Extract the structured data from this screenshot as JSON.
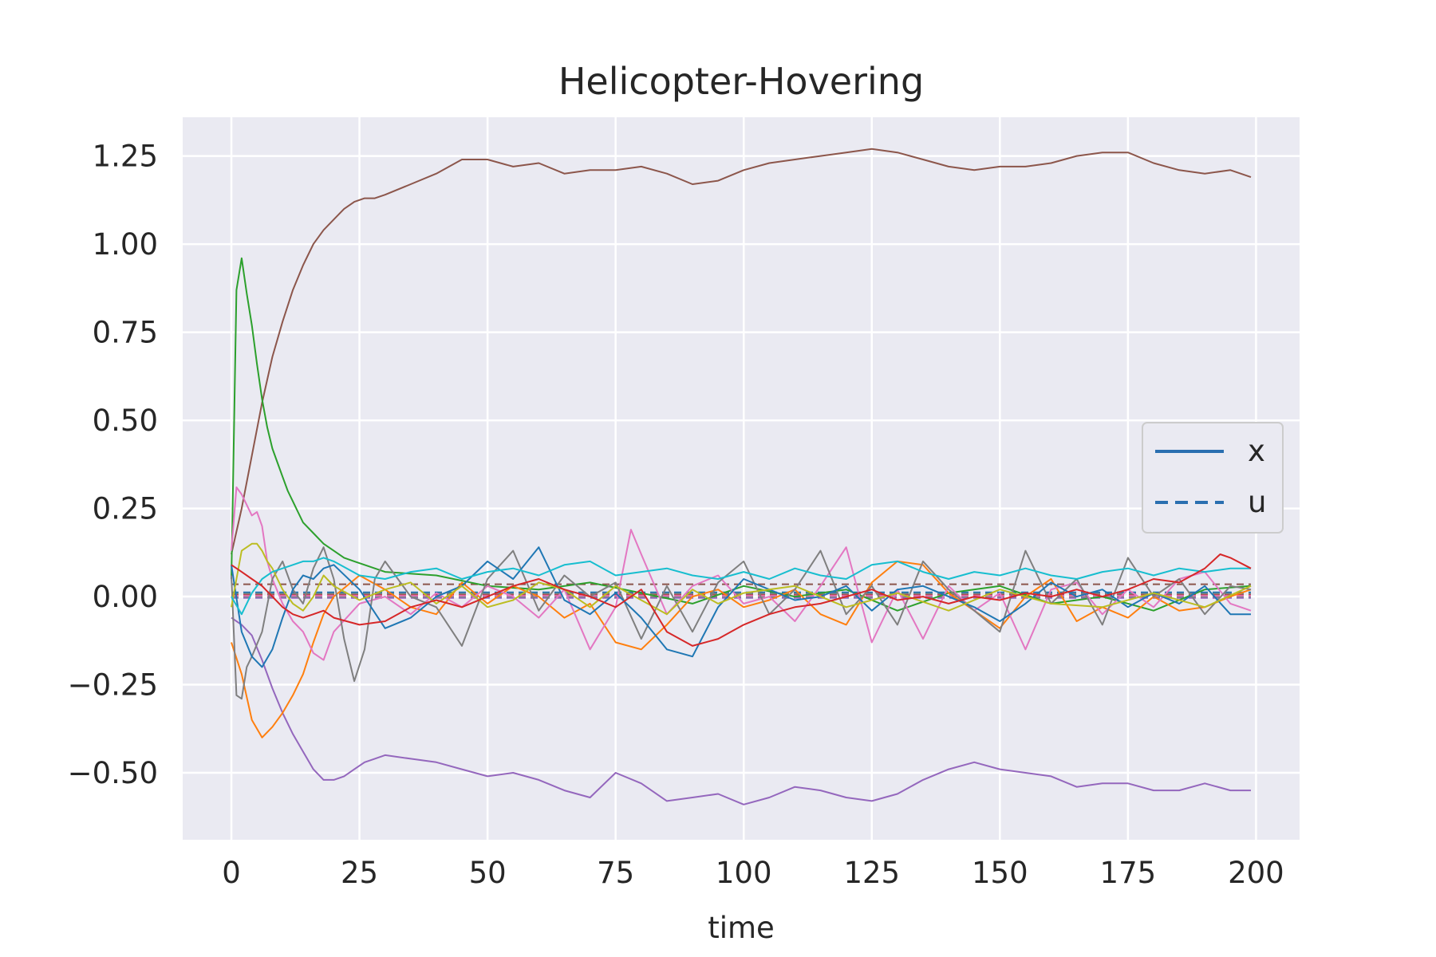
{
  "chart_data": {
    "type": "line",
    "title": "Helicopter-Hovering",
    "xlabel": "time",
    "ylabel": "",
    "xlim": [
      -9.5,
      208.5
    ],
    "ylim": [
      -0.69,
      1.36
    ],
    "xticks": [
      0,
      25,
      50,
      75,
      100,
      125,
      150,
      175,
      200
    ],
    "xtick_labels": [
      "0",
      "25",
      "50",
      "75",
      "100",
      "125",
      "150",
      "175",
      "200"
    ],
    "yticks": [
      -0.5,
      -0.25,
      0.0,
      0.25,
      0.5,
      0.75,
      1.0,
      1.25
    ],
    "ytick_labels": [
      "−0.50",
      "−0.25",
      "0.00",
      "0.25",
      "0.50",
      "0.75",
      "1.00",
      "1.25"
    ],
    "grid": true,
    "background": "#eaeaf2",
    "legend": {
      "placement": "center-right",
      "entries": [
        {
          "label": "x",
          "style": "solid",
          "color": "#2a6fb0"
        },
        {
          "label": "u",
          "style": "dashed",
          "color": "#2a6fb0"
        }
      ]
    },
    "series": [
      {
        "style": "solid",
        "color": "#8c564b",
        "x": [
          0,
          2,
          4,
          6,
          8,
          10,
          12,
          14,
          16,
          18,
          20,
          22,
          24,
          26,
          28,
          30,
          35,
          40,
          45,
          50,
          55,
          60,
          65,
          70,
          75,
          80,
          85,
          90,
          95,
          100,
          105,
          110,
          115,
          120,
          125,
          130,
          135,
          140,
          145,
          150,
          155,
          160,
          165,
          170,
          175,
          180,
          185,
          190,
          195,
          199
        ],
        "y": [
          0.12,
          0.25,
          0.4,
          0.55,
          0.68,
          0.78,
          0.87,
          0.94,
          1.0,
          1.04,
          1.07,
          1.1,
          1.12,
          1.13,
          1.13,
          1.14,
          1.17,
          1.2,
          1.24,
          1.24,
          1.22,
          1.23,
          1.2,
          1.21,
          1.21,
          1.22,
          1.2,
          1.17,
          1.18,
          1.21,
          1.23,
          1.24,
          1.25,
          1.26,
          1.27,
          1.26,
          1.24,
          1.22,
          1.21,
          1.22,
          1.22,
          1.23,
          1.25,
          1.26,
          1.26,
          1.23,
          1.21,
          1.2,
          1.21,
          1.19
        ]
      },
      {
        "style": "solid",
        "color": "#9467bd",
        "x": [
          0,
          2,
          4,
          6,
          8,
          10,
          12,
          14,
          16,
          18,
          20,
          22,
          24,
          26,
          28,
          30,
          35,
          40,
          45,
          50,
          55,
          60,
          65,
          70,
          75,
          80,
          85,
          90,
          95,
          100,
          105,
          110,
          115,
          120,
          125,
          130,
          135,
          140,
          145,
          150,
          155,
          160,
          165,
          170,
          175,
          180,
          185,
          190,
          195,
          199
        ],
        "y": [
          -0.06,
          -0.08,
          -0.11,
          -0.18,
          -0.26,
          -0.33,
          -0.39,
          -0.44,
          -0.49,
          -0.52,
          -0.52,
          -0.51,
          -0.49,
          -0.47,
          -0.46,
          -0.45,
          -0.46,
          -0.47,
          -0.49,
          -0.51,
          -0.5,
          -0.52,
          -0.55,
          -0.57,
          -0.5,
          -0.53,
          -0.58,
          -0.57,
          -0.56,
          -0.59,
          -0.57,
          -0.54,
          -0.55,
          -0.57,
          -0.58,
          -0.56,
          -0.52,
          -0.49,
          -0.47,
          -0.49,
          -0.5,
          -0.51,
          -0.54,
          -0.53,
          -0.53,
          -0.55,
          -0.55,
          -0.53,
          -0.55,
          -0.55
        ]
      },
      {
        "style": "solid",
        "color": "#2ca02c",
        "x": [
          0,
          1,
          2,
          3,
          4,
          5,
          6,
          7,
          8,
          9,
          10,
          11,
          12,
          13,
          14,
          16,
          18,
          20,
          22,
          24,
          26,
          28,
          30,
          40,
          50,
          60,
          70,
          80,
          90,
          100,
          110,
          120,
          130,
          140,
          150,
          160,
          170,
          180,
          190,
          199
        ],
        "y": [
          0.05,
          0.87,
          0.96,
          0.86,
          0.77,
          0.66,
          0.56,
          0.48,
          0.42,
          0.38,
          0.34,
          0.3,
          0.27,
          0.24,
          0.21,
          0.18,
          0.15,
          0.13,
          0.11,
          0.1,
          0.09,
          0.08,
          0.07,
          0.06,
          0.03,
          0.02,
          0.04,
          0.01,
          -0.02,
          0.03,
          0.0,
          0.02,
          -0.04,
          0.01,
          0.03,
          -0.02,
          0.0,
          -0.04,
          0.02,
          0.03
        ]
      },
      {
        "style": "solid",
        "color": "#ff7f0e",
        "x": [
          0,
          2,
          4,
          6,
          8,
          10,
          12,
          14,
          16,
          18,
          20,
          25,
          30,
          35,
          40,
          45,
          50,
          55,
          60,
          65,
          70,
          75,
          80,
          85,
          90,
          95,
          100,
          105,
          110,
          115,
          120,
          125,
          130,
          135,
          140,
          145,
          150,
          155,
          160,
          165,
          170,
          175,
          180,
          185,
          190,
          195,
          199
        ],
        "y": [
          -0.13,
          -0.22,
          -0.35,
          -0.4,
          -0.37,
          -0.33,
          -0.28,
          -0.22,
          -0.13,
          -0.05,
          0.0,
          0.06,
          0.02,
          -0.03,
          -0.05,
          0.04,
          -0.02,
          0.03,
          0.0,
          -0.06,
          -0.02,
          -0.13,
          -0.15,
          -0.08,
          0.0,
          0.02,
          -0.03,
          -0.01,
          0.02,
          -0.05,
          -0.08,
          0.04,
          0.1,
          0.09,
          0.01,
          -0.04,
          -0.09,
          0.0,
          0.05,
          -0.07,
          -0.03,
          -0.06,
          0.0,
          -0.04,
          -0.03,
          0.0,
          0.02
        ]
      },
      {
        "style": "solid",
        "color": "#e377c2",
        "x": [
          0,
          1,
          2,
          3,
          4,
          5,
          6,
          7,
          8,
          10,
          12,
          14,
          16,
          18,
          20,
          25,
          30,
          35,
          40,
          45,
          50,
          55,
          60,
          65,
          70,
          75,
          78,
          80,
          85,
          90,
          95,
          100,
          105,
          110,
          115,
          120,
          125,
          130,
          135,
          140,
          145,
          150,
          155,
          160,
          165,
          170,
          175,
          180,
          185,
          190,
          195,
          199
        ],
        "y": [
          0.13,
          0.31,
          0.29,
          0.26,
          0.23,
          0.24,
          0.2,
          0.1,
          0.05,
          -0.02,
          -0.07,
          -0.1,
          -0.16,
          -0.18,
          -0.1,
          -0.02,
          0.0,
          -0.05,
          0.01,
          -0.03,
          0.03,
          0.0,
          -0.06,
          0.02,
          -0.15,
          -0.03,
          0.19,
          0.12,
          -0.05,
          0.03,
          0.06,
          -0.02,
          0.0,
          -0.07,
          0.03,
          0.14,
          -0.13,
          0.02,
          -0.12,
          0.03,
          -0.04,
          0.01,
          -0.15,
          0.02,
          0.04,
          -0.05,
          0.02,
          -0.03,
          0.05,
          0.07,
          -0.02,
          -0.04
        ]
      },
      {
        "style": "solid",
        "color": "#7f7f7f",
        "x": [
          0,
          1,
          2,
          3,
          4,
          6,
          8,
          10,
          12,
          14,
          16,
          18,
          20,
          22,
          24,
          26,
          28,
          30,
          35,
          40,
          45,
          50,
          55,
          60,
          65,
          70,
          75,
          80,
          85,
          90,
          95,
          100,
          105,
          110,
          115,
          120,
          125,
          130,
          135,
          140,
          145,
          150,
          155,
          160,
          165,
          170,
          175,
          180,
          185,
          190,
          195,
          199
        ],
        "y": [
          0.06,
          -0.28,
          -0.29,
          -0.2,
          -0.17,
          -0.1,
          0.05,
          0.1,
          0.02,
          -0.02,
          0.08,
          0.14,
          0.05,
          -0.12,
          -0.24,
          -0.15,
          0.05,
          0.1,
          0.0,
          -0.03,
          -0.14,
          0.05,
          0.13,
          -0.04,
          0.06,
          0.0,
          0.04,
          -0.12,
          0.03,
          -0.1,
          0.04,
          0.1,
          -0.05,
          0.02,
          0.13,
          -0.05,
          0.03,
          -0.08,
          0.1,
          0.02,
          -0.04,
          -0.1,
          0.13,
          -0.02,
          0.05,
          -0.08,
          0.11,
          0.0,
          0.05,
          -0.05,
          0.03,
          0.02
        ]
      },
      {
        "style": "solid",
        "color": "#1f77b4",
        "x": [
          0,
          2,
          4,
          6,
          8,
          10,
          12,
          14,
          16,
          18,
          20,
          25,
          30,
          35,
          40,
          45,
          50,
          55,
          60,
          65,
          70,
          75,
          80,
          85,
          90,
          95,
          100,
          105,
          110,
          115,
          120,
          125,
          130,
          135,
          140,
          145,
          150,
          155,
          160,
          165,
          170,
          175,
          180,
          185,
          190,
          195,
          199
        ],
        "y": [
          0.09,
          -0.1,
          -0.17,
          -0.2,
          -0.15,
          -0.06,
          0.02,
          0.06,
          0.05,
          0.08,
          0.09,
          0.02,
          -0.09,
          -0.06,
          0.0,
          0.03,
          0.1,
          0.05,
          0.14,
          -0.01,
          -0.05,
          0.01,
          -0.06,
          -0.15,
          -0.17,
          -0.03,
          0.05,
          0.02,
          -0.01,
          0.0,
          0.03,
          -0.04,
          0.02,
          0.03,
          0.0,
          -0.03,
          -0.07,
          -0.02,
          0.04,
          0.0,
          0.02,
          -0.03,
          0.01,
          -0.02,
          0.03,
          -0.05,
          -0.05
        ]
      },
      {
        "style": "solid",
        "color": "#bcbd22",
        "x": [
          0,
          1,
          2,
          3,
          4,
          5,
          6,
          7,
          8,
          9,
          10,
          12,
          14,
          16,
          18,
          20,
          25,
          30,
          35,
          40,
          45,
          50,
          55,
          60,
          65,
          70,
          75,
          80,
          85,
          90,
          95,
          100,
          110,
          120,
          130,
          140,
          150,
          160,
          170,
          180,
          190,
          199
        ],
        "y": [
          -0.03,
          0.05,
          0.13,
          0.14,
          0.15,
          0.15,
          0.13,
          0.1,
          0.08,
          0.05,
          0.02,
          -0.02,
          -0.04,
          0.0,
          0.06,
          0.03,
          -0.01,
          0.02,
          0.04,
          -0.02,
          0.03,
          -0.03,
          -0.01,
          0.04,
          0.02,
          -0.03,
          0.03,
          -0.01,
          -0.05,
          0.02,
          -0.02,
          0.01,
          0.03,
          -0.03,
          0.01,
          -0.04,
          0.02,
          -0.02,
          -0.03,
          0.01,
          -0.03,
          0.03
        ]
      },
      {
        "style": "solid",
        "color": "#17becf",
        "x": [
          0,
          2,
          4,
          6,
          8,
          10,
          12,
          14,
          16,
          18,
          20,
          25,
          30,
          35,
          40,
          45,
          50,
          55,
          60,
          65,
          70,
          75,
          80,
          85,
          90,
          95,
          100,
          105,
          110,
          115,
          120,
          125,
          130,
          135,
          140,
          145,
          150,
          155,
          160,
          165,
          170,
          175,
          180,
          185,
          190,
          195,
          199
        ],
        "y": [
          0.0,
          -0.05,
          0.01,
          0.05,
          0.07,
          0.08,
          0.09,
          0.1,
          0.1,
          0.11,
          0.1,
          0.06,
          0.05,
          0.07,
          0.08,
          0.05,
          0.07,
          0.08,
          0.06,
          0.09,
          0.1,
          0.06,
          0.07,
          0.08,
          0.06,
          0.05,
          0.07,
          0.05,
          0.08,
          0.06,
          0.05,
          0.09,
          0.1,
          0.07,
          0.05,
          0.07,
          0.06,
          0.08,
          0.06,
          0.05,
          0.07,
          0.08,
          0.06,
          0.08,
          0.07,
          0.08,
          0.08
        ]
      },
      {
        "style": "solid",
        "color": "#d62728",
        "x": [
          0,
          2,
          4,
          6,
          8,
          10,
          12,
          14,
          16,
          18,
          20,
          25,
          30,
          35,
          40,
          45,
          50,
          55,
          60,
          65,
          70,
          75,
          80,
          85,
          90,
          95,
          100,
          105,
          110,
          115,
          120,
          125,
          130,
          135,
          140,
          145,
          150,
          155,
          160,
          165,
          170,
          175,
          180,
          185,
          190,
          193,
          195,
          199
        ],
        "y": [
          0.09,
          0.07,
          0.05,
          0.03,
          0.0,
          -0.03,
          -0.05,
          -0.06,
          -0.05,
          -0.04,
          -0.06,
          -0.08,
          -0.07,
          -0.03,
          -0.01,
          -0.03,
          0.0,
          0.03,
          0.05,
          0.02,
          0.0,
          -0.03,
          0.02,
          -0.1,
          -0.14,
          -0.12,
          -0.08,
          -0.05,
          -0.03,
          -0.02,
          0.0,
          0.02,
          -0.01,
          0.0,
          -0.02,
          0.0,
          -0.01,
          0.01,
          0.0,
          0.02,
          0.0,
          0.02,
          0.05,
          0.04,
          0.08,
          0.12,
          0.11,
          0.08
        ]
      },
      {
        "style": "dashed",
        "color": "#8c564b",
        "x": [
          0,
          199
        ],
        "y": [
          0.035,
          0.035
        ]
      },
      {
        "style": "dashed",
        "color": "#1f77b4",
        "x": [
          0,
          199
        ],
        "y": [
          0.012,
          0.012
        ]
      },
      {
        "style": "dashed",
        "color": "#ff7f0e",
        "x": [
          0,
          199
        ],
        "y": [
          0.006,
          0.006
        ]
      },
      {
        "style": "dashed",
        "color": "#2ca02c",
        "x": [
          0,
          199
        ],
        "y": [
          0.0,
          0.0
        ]
      },
      {
        "style": "dashed",
        "color": "#d62728",
        "x": [
          0,
          199
        ],
        "y": [
          0.004,
          0.004
        ]
      },
      {
        "style": "dashed",
        "color": "#9467bd",
        "x": [
          0,
          199
        ],
        "y": [
          -0.004,
          -0.004
        ]
      },
      {
        "style": "dashed",
        "color": "#e377c2",
        "x": [
          0,
          199
        ],
        "y": [
          0.002,
          0.002
        ]
      },
      {
        "style": "dashed",
        "color": "#7f7f7f",
        "x": [
          0,
          199
        ],
        "y": [
          0.008,
          0.008
        ]
      }
    ]
  }
}
